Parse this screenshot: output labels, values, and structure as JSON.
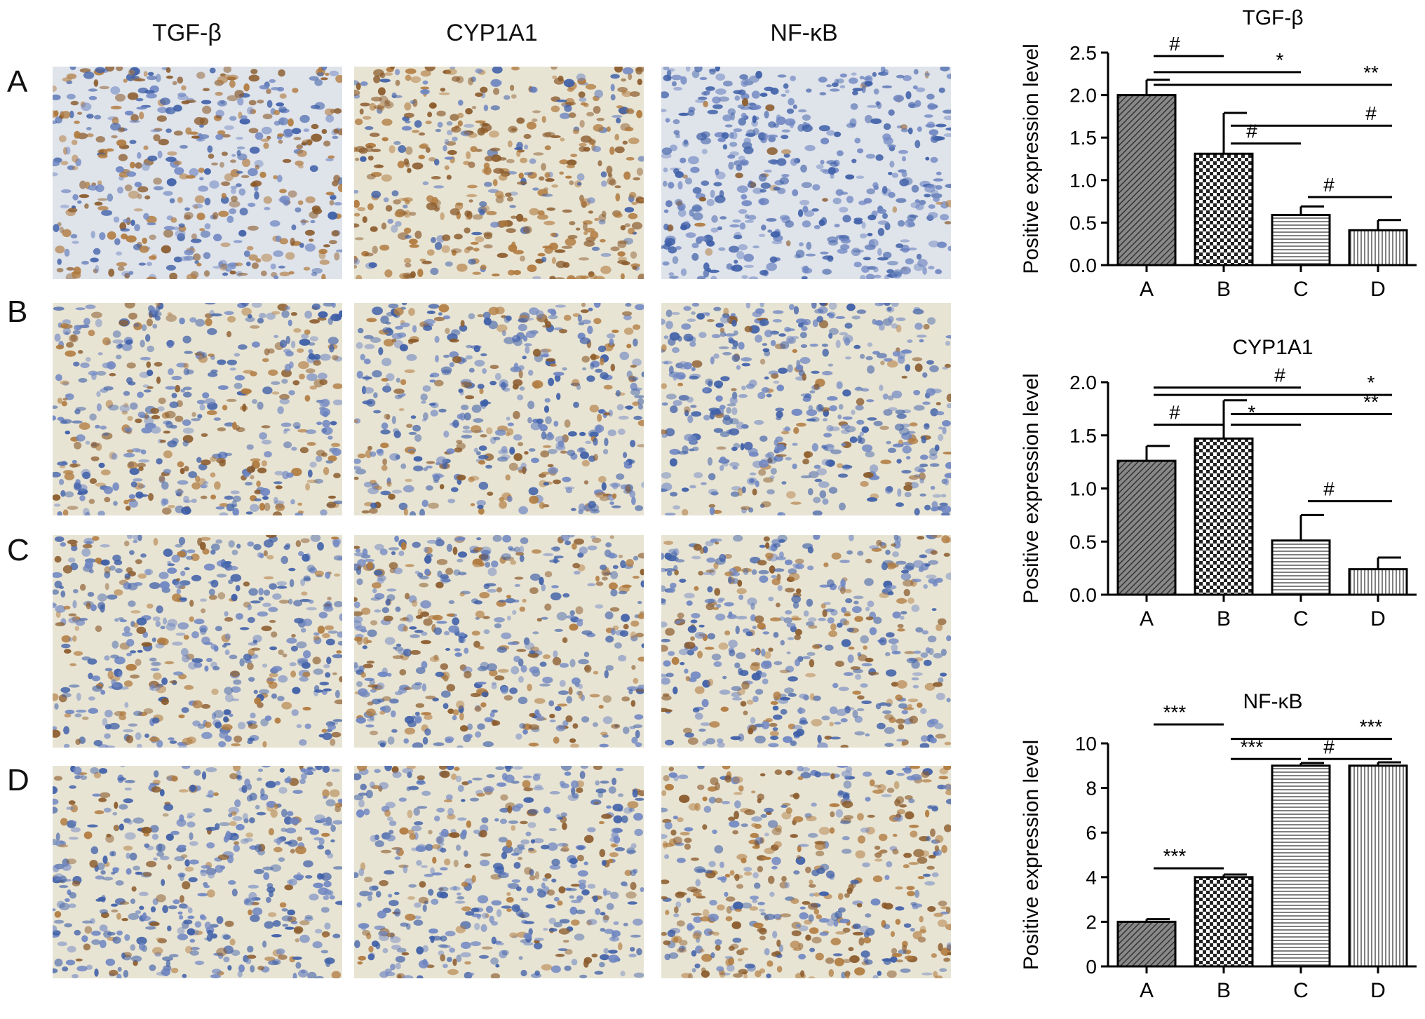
{
  "figure": {
    "column_titles": [
      "TGF-β",
      "CYP1A1",
      "NF-κB"
    ],
    "row_labels": [
      "A",
      "B",
      "C",
      "D"
    ],
    "stain_colors": {
      "brown": "#8a5a2b",
      "blue": "#3e5fa8",
      "background": "#e8e4d4"
    }
  },
  "chart_data": [
    {
      "type": "bar",
      "title": "TGF-β",
      "ylabel": "Positive expression level",
      "categories": [
        "A",
        "B",
        "C",
        "D"
      ],
      "values": [
        2.0,
        1.31,
        0.59,
        0.41
      ],
      "errors": [
        0.18,
        0.48,
        0.1,
        0.12
      ],
      "ylim": [
        0,
        2.5
      ],
      "yticks": [
        "0.0",
        "0.5",
        "1.0",
        "1.5",
        "2.0",
        "2.5"
      ],
      "annotations": [
        {
          "from": "A",
          "to": "B",
          "level": 2.46,
          "label": "#"
        },
        {
          "from": "A",
          "to": "C",
          "level": 2.27,
          "label": "*"
        },
        {
          "from": "A",
          "to": "D",
          "level": 2.12,
          "label": "**"
        },
        {
          "from": "B",
          "to": "D",
          "level": 1.64,
          "label": "#"
        },
        {
          "from": "B",
          "to": "C",
          "level": 1.43,
          "label": "#"
        },
        {
          "from": "C",
          "to": "D",
          "level": 0.8,
          "label": "#"
        }
      ]
    },
    {
      "type": "bar",
      "title": "CYP1A1",
      "ylabel": "Positive expression level",
      "categories": [
        "A",
        "B",
        "C",
        "D"
      ],
      "values": [
        1.26,
        1.47,
        0.51,
        0.24
      ],
      "errors": [
        0.14,
        0.36,
        0.24,
        0.11
      ],
      "ylim": [
        0,
        2.0
      ],
      "yticks": [
        "0.0",
        "0.5",
        "1.0",
        "1.5",
        "2.0"
      ],
      "annotations": [
        {
          "from": "A",
          "to": "C",
          "level": 1.95,
          "label": "#"
        },
        {
          "from": "A",
          "to": "D",
          "level": 1.88,
          "label": "*"
        },
        {
          "from": "B",
          "to": "D",
          "level": 1.7,
          "label": "**"
        },
        {
          "from": "A",
          "to": "B",
          "level": 1.6,
          "label": "#"
        },
        {
          "from": "B",
          "to": "C",
          "level": 1.6,
          "label": "*"
        },
        {
          "from": "C",
          "to": "D",
          "level": 0.88,
          "label": "#"
        }
      ]
    },
    {
      "type": "bar",
      "title": "NF-κB",
      "ylabel": "Positive expression level",
      "categories": [
        "A",
        "B",
        "C",
        "D"
      ],
      "values": [
        2.0,
        4.0,
        9.0,
        9.0
      ],
      "errors": [
        0.12,
        0.12,
        0.12,
        0.15
      ],
      "ylim": [
        0,
        10
      ],
      "yticks": [
        "0",
        "2",
        "4",
        "6",
        "8",
        "10"
      ],
      "annotations": [
        {
          "from": "A",
          "to": "B",
          "level": 10.85,
          "label": "***"
        },
        {
          "from": "B",
          "to": "D",
          "level": 10.2,
          "label": "***"
        },
        {
          "from": "B",
          "to": "C",
          "level": 9.3,
          "label": "***"
        },
        {
          "from": "C",
          "to": "D",
          "level": 9.3,
          "label": "#"
        },
        {
          "from": "A",
          "to": "B",
          "level": 4.4,
          "label": "***"
        }
      ]
    }
  ]
}
